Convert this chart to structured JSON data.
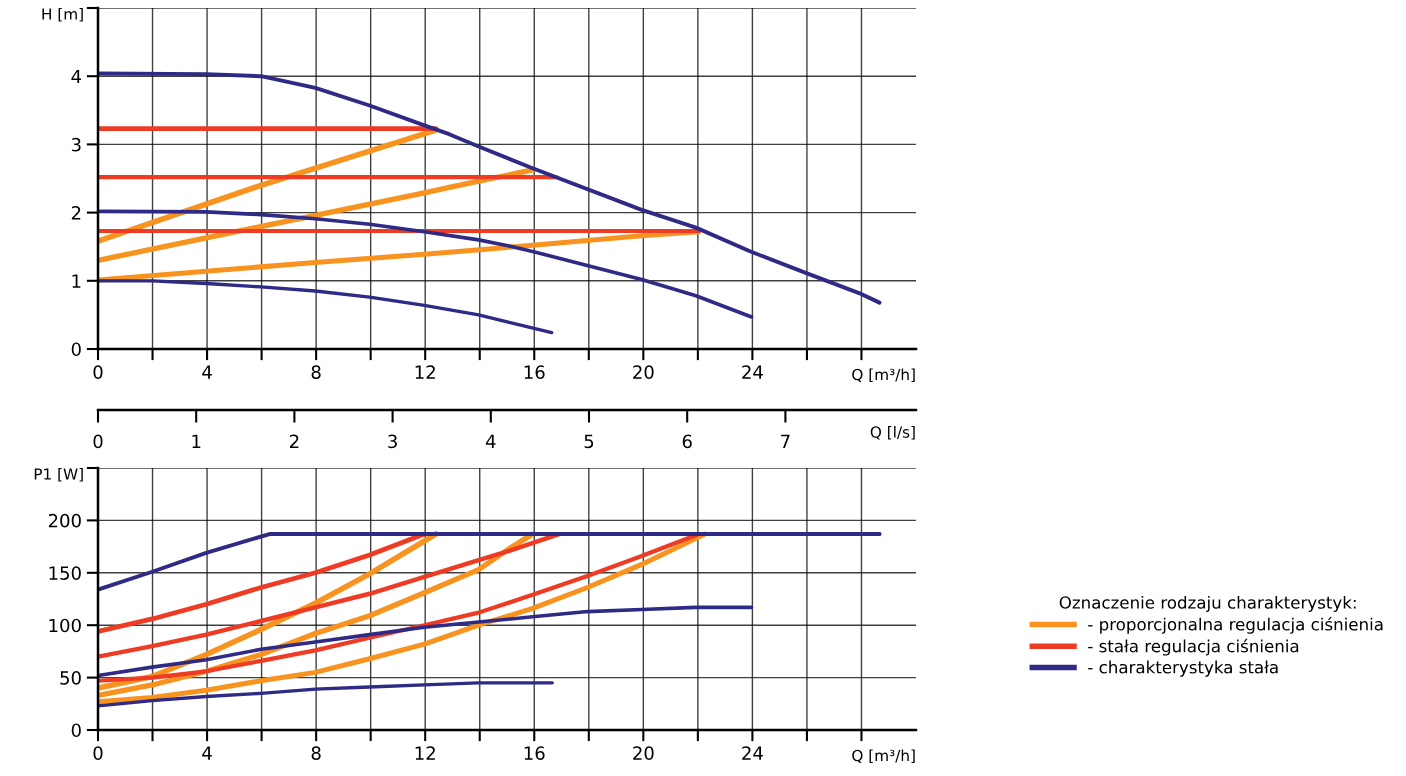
{
  "chart_data": [
    {
      "type": "line",
      "ylabel": "H [m]",
      "xlabel": "Q [m³/h]",
      "xlim": [
        0,
        30
      ],
      "ylim": [
        0,
        5
      ],
      "xticks": [
        0,
        {
          "value": 2,
          "label": null
        },
        4,
        {
          "value": 6,
          "label": null
        },
        8,
        {
          "value": 10,
          "label": null
        },
        12,
        {
          "value": 14,
          "label": null
        },
        16,
        {
          "value": 18,
          "label": null
        },
        20,
        {
          "value": 22,
          "label": null
        },
        24,
        {
          "value": 26,
          "label": null
        },
        {
          "value": 28,
          "label": null
        }
      ],
      "yticks": [
        0,
        1,
        2,
        3,
        4,
        {
          "value": 5,
          "label": null
        }
      ],
      "grid": true,
      "marker": "none",
      "line_style": "solid",
      "series": [
        {
          "color": "#f7931e",
          "x": [
            0,
            5.98,
            12.39
          ],
          "values": [
            1.58,
            2.4,
            3.21
          ]
        },
        {
          "color": "#f7931e",
          "x": [
            0,
            3.97,
            7.97,
            11.97,
            12.88,
            15.99
          ],
          "values": [
            1.3,
            1.63,
            1.96,
            2.29,
            2.37,
            2.63
          ]
        },
        {
          "color": "#f7931e",
          "x": [
            0,
            3.97,
            7.97,
            11.97,
            12.88,
            15.94,
            19.94,
            22.04
          ],
          "values": [
            1.01,
            1.14,
            1.27,
            1.39,
            1.42,
            1.52,
            1.66,
            1.72
          ]
        },
        {
          "color": "#ee3b24",
          "x": [
            0,
            12.39
          ],
          "values": [
            3.23,
            3.23
          ]
        },
        {
          "color": "#ee3b24",
          "x": [
            0,
            16.79
          ],
          "values": [
            2.52,
            2.52
          ]
        },
        {
          "color": "#ee3b24",
          "x": [
            0,
            22.04
          ],
          "values": [
            1.73,
            1.73
          ]
        },
        {
          "color": "#2e2a85",
          "x": [
            0,
            3.97,
            5.98,
            7.97,
            9.96,
            11.97,
            12.88,
            13.96,
            15.94,
            19.94,
            21.93,
            23.93,
            25.93,
            27.91,
            28.66
          ],
          "values": [
            4.04,
            4.03,
            4.0,
            3.83,
            3.57,
            3.28,
            3.15,
            2.97,
            2.65,
            2.04,
            1.78,
            1.43,
            1.12,
            0.82,
            0.68
          ]
        },
        {
          "color": "#2e2a85",
          "x": [
            0,
            3.97,
            5.98,
            7.97,
            9.96,
            11.97,
            13.96,
            15.08,
            15.94,
            19.94,
            21.93,
            23.97
          ],
          "values": [
            2.02,
            2.01,
            1.97,
            1.91,
            1.83,
            1.72,
            1.6,
            1.51,
            1.43,
            1.02,
            0.78,
            0.47
          ]
        },
        {
          "color": "#2e2a85",
          "x": [
            0,
            1.99,
            3.97,
            5.98,
            7.97,
            9.96,
            11.97,
            13.96,
            15.08,
            16.64
          ],
          "values": [
            1.0,
            1.0,
            0.96,
            0.91,
            0.85,
            0.76,
            0.64,
            0.5,
            0.39,
            0.24
          ]
        }
      ]
    },
    {
      "type": "line",
      "ylabel": "P1 [W]",
      "xlabel": "Q [m³/h]",
      "x2label": "Q [l/s]",
      "xlim": [
        0,
        30
      ],
      "ylim": [
        0,
        250
      ],
      "x2lim": [
        0,
        8.33
      ],
      "xticks": [
        0,
        {
          "value": 2,
          "label": null
        },
        4,
        {
          "value": 6,
          "label": null
        },
        8,
        {
          "value": 10,
          "label": null
        },
        12,
        {
          "value": 14,
          "label": null
        },
        16,
        {
          "value": 18,
          "label": null
        },
        20,
        {
          "value": 22,
          "label": null
        },
        24,
        {
          "value": 26,
          "label": null
        },
        {
          "value": 28,
          "label": null
        }
      ],
      "yticks": [
        0,
        50,
        100,
        150,
        200,
        {
          "value": 250,
          "label": null
        }
      ],
      "x2ticks": [
        0,
        1,
        2,
        3,
        4,
        5,
        6,
        7
      ],
      "grid": true,
      "marker": "none",
      "line_style": "solid",
      "legend": "right",
      "legend_title": "Oznaczenie rodzaju charakterystyk:",
      "series": [
        {
          "name": "- proporcjonalna regulacja ciśnienia",
          "color": "#f7931e",
          "x": [
            0,
            1.99,
            3.97,
            5.98,
            7.97,
            9.96,
            12.39
          ],
          "values": [
            40,
            51,
            72,
            96,
            121,
            149,
            187
          ]
        },
        {
          "color": "#f7931e",
          "x": [
            0,
            1.99,
            3.97,
            5.98,
            7.97,
            9.96,
            11.97,
            13.96,
            15.08,
            15.94
          ],
          "values": [
            33,
            43,
            56,
            72,
            92,
            109,
            131,
            153,
            173,
            187
          ]
        },
        {
          "color": "#f7931e",
          "x": [
            0,
            1.99,
            3.97,
            5.98,
            7.97,
            9.96,
            11.97,
            13.96,
            15.94,
            17.95,
            19.94,
            22.26
          ],
          "values": [
            27,
            31,
            38,
            47,
            55,
            68,
            82,
            100,
            116,
            136,
            158,
            187
          ]
        },
        {
          "name": "- stała regulacja ciśnienia",
          "color": "#ee3b24",
          "x": [
            0,
            1.99,
            3.97,
            5.98,
            7.97,
            9.96,
            11.97
          ],
          "values": [
            94,
            106,
            120,
            136,
            150,
            167,
            187
          ]
        },
        {
          "color": "#ee3b24",
          "x": [
            0,
            1.99,
            3.97,
            5.98,
            7.97,
            9.96,
            11.97,
            13.96,
            15.08,
            16.91
          ],
          "values": [
            70,
            80,
            91,
            104,
            117,
            130,
            146,
            162,
            171,
            187
          ]
        },
        {
          "color": "#ee3b24",
          "x": [
            0,
            1.99,
            3.97,
            5.98,
            7.97,
            9.96,
            11.97,
            13.96,
            15.94,
            17.95,
            19.94,
            22.04,
            28.66
          ],
          "values": [
            47,
            50,
            56,
            66,
            76,
            88,
            100,
            112,
            129,
            147,
            166,
            187,
            187
          ]
        },
        {
          "name": "- charakterystyka stała",
          "color": "#2e2a85",
          "x": [
            0,
            1.99,
            3.97,
            6.29,
            28.66
          ],
          "values": [
            134,
            151,
            169,
            187,
            187
          ]
        },
        {
          "color": "#2e2a85",
          "x": [
            0,
            1.99,
            3.97,
            5.98,
            7.97,
            9.96,
            11.97,
            13.96,
            15.94,
            17.95,
            19.94,
            21.92,
            23.97
          ],
          "values": [
            52,
            60,
            67,
            77,
            84,
            91,
            98,
            103,
            108,
            113,
            115,
            117,
            117
          ]
        },
        {
          "color": "#2e2a85",
          "x": [
            0,
            1.99,
            3.97,
            5.98,
            7.97,
            9.96,
            11.97,
            13.96,
            16.66
          ],
          "values": [
            23,
            28,
            32,
            35,
            39,
            41,
            43,
            45,
            45
          ]
        }
      ]
    }
  ]
}
